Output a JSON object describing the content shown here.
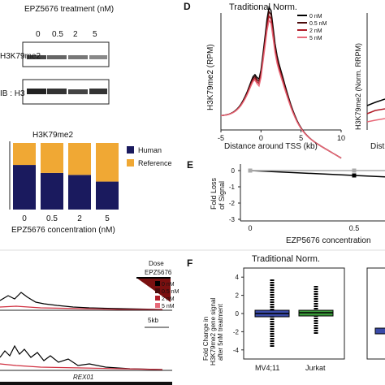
{
  "panelA": {
    "treatment_label": "EPZ5676 treatment (nM)",
    "doses": [
      "0",
      "0.5",
      "2",
      "5"
    ],
    "blot1_label": "H3K79me2",
    "blot2_label": "IB : H3"
  },
  "panelB": {
    "chart_data": {
      "type": "bar",
      "title": "H3K79me2",
      "categories": [
        "0",
        "0.5",
        "2",
        "5"
      ],
      "xlabel": "EPZ5676 concentration (nM)",
      "ylim": [
        0,
        1
      ],
      "series": [
        {
          "name": "Human",
          "values": [
            0.67,
            0.55,
            0.52,
            0.42
          ]
        },
        {
          "name": "Reference",
          "values": [
            0.33,
            0.45,
            0.48,
            0.58
          ]
        }
      ],
      "legend": [
        "Human",
        "Reference"
      ],
      "colors": {
        "Human": "#1a1a5e",
        "Reference": "#f0a834"
      }
    }
  },
  "panelC": {
    "legend_title1": "Dose",
    "legend_title2": "EPZ5676",
    "legend_items": [
      "0 nM",
      "0.5 nM",
      "2 nM",
      "5 nM"
    ],
    "legend_colors": [
      "#000000",
      "#4a0a0a",
      "#b01c28",
      "#e86878"
    ],
    "scale_label": "5kb",
    "gene_label": "REX01"
  },
  "panelD": {
    "letter": "D",
    "chart_data": {
      "type": "line",
      "title": "Traditional Norm.",
      "xlabel": "Distance around TSS (kb)",
      "ylabel": "H3K79me2 (RPM)",
      "xticks": [
        "-5",
        "0",
        "5",
        "10"
      ],
      "xlim": [
        -5,
        10
      ],
      "series_names": [
        "0 nM",
        "0.5 nM",
        "2 nM",
        "5 nM"
      ],
      "colors": [
        "#000000",
        "#4a0a0a",
        "#b01c28",
        "#e86878"
      ]
    },
    "right_ylabel": "H3K79me2 (Norm. RRPM)",
    "right_xlabel_fragment": "Dist"
  },
  "panelE": {
    "letter": "E",
    "ylabel_line1": "Fold Loss",
    "ylabel_line2": "of Signal",
    "xlabel": "EZP5676 concentration",
    "chart_data": {
      "type": "line",
      "x": [
        0,
        0.5,
        1
      ],
      "yticks": [
        "0",
        "-1",
        "-2",
        "-3"
      ],
      "xticks": [
        "0",
        "0.5"
      ],
      "series": [
        {
          "name": "",
          "values": [
            0,
            -0.3,
            -0.6
          ],
          "color": "#000000"
        },
        {
          "name": "",
          "values": [
            0,
            0,
            0
          ],
          "color": "#aaaaaa"
        }
      ]
    }
  },
  "panelF": {
    "letter": "F",
    "title": "Traditional Norm.",
    "ylabel_lines": [
      "Fold Change in",
      "H3K79me2 gene signal",
      "after 5nM treatment"
    ],
    "chart_data": {
      "type": "box",
      "categories": [
        "MV4;11",
        "Jurkat"
      ],
      "yticks": [
        "4",
        "2",
        "0",
        "-2",
        "-4"
      ],
      "ylim": [
        -5,
        5
      ],
      "colors": [
        "#3a4aa8",
        "#3a9a3a"
      ]
    }
  }
}
